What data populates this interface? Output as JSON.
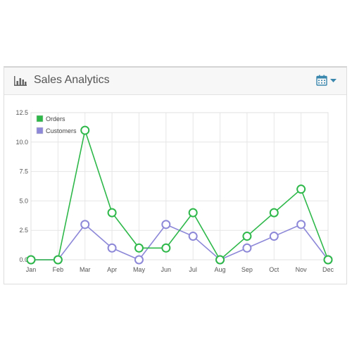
{
  "widget": {
    "title": "Sales Analytics",
    "header_icon": "bar-chart-icon",
    "toggle_icon": "calendar-icon",
    "toggle_caret_icon": "caret-down-icon",
    "accent_color": "#3a87ad"
  },
  "chart_data": {
    "type": "line",
    "categories": [
      "Jan",
      "Feb",
      "Mar",
      "Apr",
      "May",
      "Jun",
      "Jul",
      "Aug",
      "Sep",
      "Oct",
      "Nov",
      "Dec"
    ],
    "series": [
      {
        "name": "Orders",
        "color": "#2eb84a",
        "values": [
          0,
          0,
          11,
          4,
          1,
          1,
          4,
          0,
          2,
          4,
          6,
          0
        ]
      },
      {
        "name": "Customers",
        "color": "#8d88d8",
        "values": [
          0,
          0,
          3,
          1,
          0,
          3,
          2,
          0,
          1,
          2,
          3,
          0
        ]
      }
    ],
    "yticks": [
      "0.0",
      "2.5",
      "5.0",
      "7.5",
      "10.0",
      "12.5"
    ],
    "ylim": [
      0,
      12.5
    ],
    "grid": true,
    "legend_position": "top-left"
  }
}
